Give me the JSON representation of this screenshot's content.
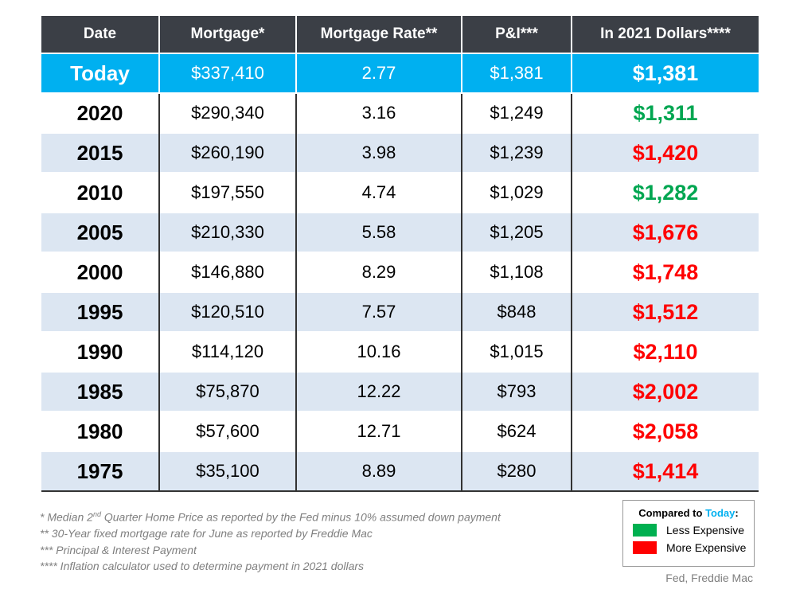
{
  "table": {
    "header": [
      "Date",
      "Mortgage*",
      "Mortgage Rate**",
      "P&I***",
      "In 2021 Dollars****"
    ],
    "rows": [
      [
        "Today",
        "$337,410",
        "2.77",
        "$1,381",
        "$1,381"
      ],
      [
        "2020",
        "$290,340",
        "3.16",
        "$1,249",
        "$1,311"
      ],
      [
        "2015",
        "$260,190",
        "3.98",
        "$1,239",
        "$1,420"
      ],
      [
        "2010",
        "$197,550",
        "4.74",
        "$1,029",
        "$1,282"
      ],
      [
        "2005",
        "$210,330",
        "5.58",
        "$1,205",
        "$1,676"
      ],
      [
        "2000",
        "$146,880",
        "8.29",
        "$1,108",
        "$1,748"
      ],
      [
        "1995",
        "$120,510",
        "7.57",
        "$848",
        "$1,512"
      ],
      [
        "1990",
        "$114,120",
        "10.16",
        "$1,015",
        "$2,110"
      ],
      [
        "1985",
        "$75,870",
        "12.22",
        "$793",
        "$2,002"
      ],
      [
        "1980",
        "$57,600",
        "12.71",
        "$624",
        "$2,058"
      ],
      [
        "1975",
        "$35,100",
        "8.89",
        "$280",
        "$1,414"
      ]
    ],
    "dollar_colors": [
      "#ffffff",
      "#00a651",
      "#ff0000",
      "#00a651",
      "#ff0000",
      "#ff0000",
      "#ff0000",
      "#ff0000",
      "#ff0000",
      "#ff0000",
      "#ff0000"
    ]
  },
  "footnotes": [
    {
      "before": "* Median 2",
      "sup": "nd",
      "after": " Quarter Home Price as reported by the Fed minus 10% assumed down payment"
    },
    {
      "text": "** 30-Year fixed mortgage rate for June as reported by Freddie Mac"
    },
    {
      "text": "*** Principal & Interest Payment"
    },
    {
      "text": "**** Inflation calculator used to determine payment in 2021 dollars"
    }
  ],
  "legend": {
    "title_before": "Compared to ",
    "title_highlight": "Today",
    "title_after": ":",
    "items": [
      {
        "label": "Less Expensive",
        "color": "#00b050"
      },
      {
        "label": "More Expensive",
        "color": "#ff0000"
      }
    ]
  },
  "source": "Fed, Freddie Mac"
}
